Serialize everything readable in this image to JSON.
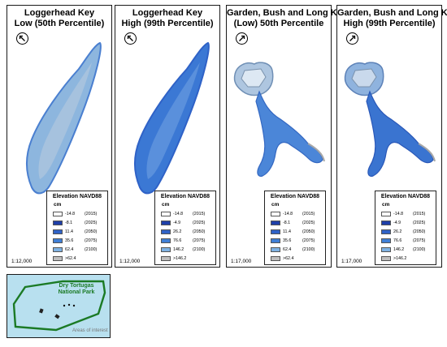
{
  "panels": [
    {
      "title_line1": "Loggerhead Key",
      "title_line2": "Low (50th Percentile)",
      "scale": "1:12,000",
      "legend": {
        "title": "Elevation NAVD88",
        "unit": "cm",
        "rows": [
          {
            "value": "-14.8",
            "year": "(2015)",
            "color": "#ffffff"
          },
          {
            "value": "-8.1",
            "year": "(2025)",
            "color": "#1f3fa8"
          },
          {
            "value": "11.4",
            "year": "(2050)",
            "color": "#2f62c7"
          },
          {
            "value": "35.6",
            "year": "(2075)",
            "color": "#3f7fd6"
          },
          {
            "value": "62.4",
            "year": "(2100)",
            "color": "#7fb2e3"
          },
          {
            "value": ">62.4",
            "year": "",
            "color": "#bfbfbf"
          }
        ]
      }
    },
    {
      "title_line1": "Loggerhead Key",
      "title_line2": "High (99th Percentile)",
      "scale": "1:12,000",
      "legend": {
        "title": "Elevation NAVD88",
        "unit": "cm",
        "rows": [
          {
            "value": "-14.8",
            "year": "(2015)",
            "color": "#ffffff"
          },
          {
            "value": "-4.9",
            "year": "(2025)",
            "color": "#1f3fa8"
          },
          {
            "value": "26.2",
            "year": "(2050)",
            "color": "#2f62c7"
          },
          {
            "value": "76.6",
            "year": "(2075)",
            "color": "#3f7fd6"
          },
          {
            "value": "146.2",
            "year": "(2100)",
            "color": "#7fb2e3"
          },
          {
            "value": ">146.2",
            "year": "",
            "color": "#bfbfbf"
          }
        ]
      }
    },
    {
      "title_line1": "Garden, Bush and Long Keys",
      "title_line2": "(Low) 50th Percentile",
      "scale": "1:17,000",
      "legend": {
        "title": "Elevation NAVD88",
        "unit": "cm",
        "rows": [
          {
            "value": "-14.8",
            "year": "(2015)",
            "color": "#ffffff"
          },
          {
            "value": "-8.1",
            "year": "(2025)",
            "color": "#1f3fa8"
          },
          {
            "value": "11.4",
            "year": "(2050)",
            "color": "#2f62c7"
          },
          {
            "value": "35.6",
            "year": "(2075)",
            "color": "#3f7fd6"
          },
          {
            "value": "62.4",
            "year": "(2100)",
            "color": "#7fb2e3"
          },
          {
            "value": ">62.4",
            "year": "",
            "color": "#bfbfbf"
          }
        ]
      }
    },
    {
      "title_line1": "Garden, Bush and Long Keys",
      "title_line2": "High (99th Percentile)",
      "scale": "1:17,000",
      "legend": {
        "title": "Elevation NAVD88",
        "unit": "cm",
        "rows": [
          {
            "value": "-14.8",
            "year": "(2015)",
            "color": "#ffffff"
          },
          {
            "value": "-4.9",
            "year": "(2025)",
            "color": "#1f3fa8"
          },
          {
            "value": "26.2",
            "year": "(2050)",
            "color": "#2f62c7"
          },
          {
            "value": "76.6",
            "year": "(2075)",
            "color": "#3f7fd6"
          },
          {
            "value": "146.2",
            "year": "(2100)",
            "color": "#7fb2e3"
          },
          {
            "value": ">146.2",
            "year": "",
            "color": "#bfbfbf"
          }
        ]
      }
    }
  ],
  "inset": {
    "park_line1": "Dry Tortugas",
    "park_line2": "National Park",
    "areas_label": "Areas of interest"
  }
}
